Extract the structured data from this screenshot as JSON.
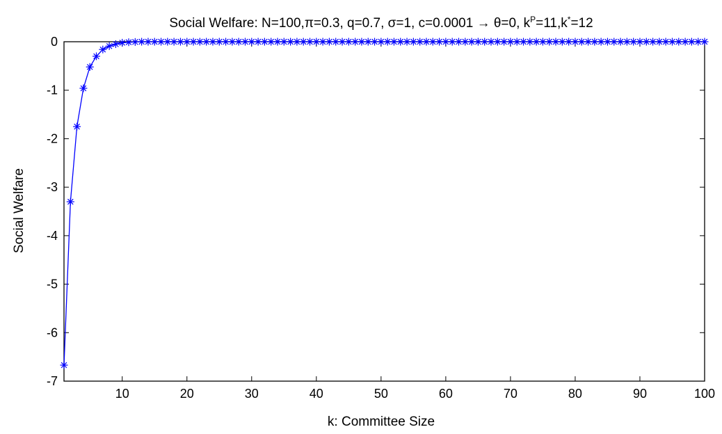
{
  "chart_data": {
    "type": "line",
    "title_parts": {
      "main": "Social Welfare: N=100,π=0.3, q=0.7, σ=1, c=0.0001 → θ=0, k",
      "sup1": "P",
      "mid": "=11,k",
      "sup2": "*",
      "end": "=12"
    },
    "xlabel": "k: Committee Size",
    "ylabel": "Social Welfare",
    "xlim": [
      1,
      100
    ],
    "ylim": [
      -7,
      0
    ],
    "xticks": [
      10,
      20,
      30,
      40,
      50,
      60,
      70,
      80,
      90,
      100
    ],
    "yticks": [
      0,
      -1,
      -2,
      -3,
      -4,
      -5,
      -6,
      -7
    ],
    "grid": false,
    "series": [
      {
        "color": "#0000ff",
        "marker": "asterisk",
        "x_start": 1,
        "x_end": 100,
        "y_head": [
          -6.67,
          -3.3,
          -1.75,
          -0.96,
          -0.52,
          -0.3,
          -0.16,
          -0.09,
          -0.05,
          -0.02,
          -0.01,
          -0.005
        ],
        "y_tail": 0
      }
    ]
  }
}
